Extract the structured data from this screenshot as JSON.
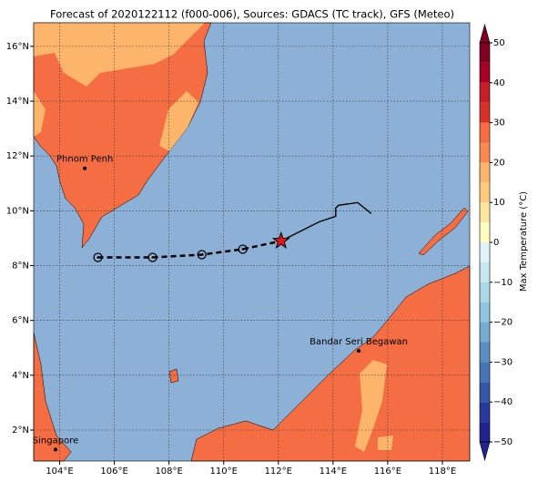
{
  "title": "Forecast of 2020122112 (f000-006), Sources: GDACS (TC track), GFS (Meteo)",
  "map": {
    "lonlim": [
      103.05,
      119.0
    ],
    "latlim": [
      0.87,
      16.86
    ],
    "grid": true,
    "xticks": [
      {
        "value": 104,
        "label": "104°E"
      },
      {
        "value": 106,
        "label": "106°E"
      },
      {
        "value": 108,
        "label": "108°E"
      },
      {
        "value": 110,
        "label": "110°E"
      },
      {
        "value": 112,
        "label": "112°E"
      },
      {
        "value": 114,
        "label": "114°E"
      },
      {
        "value": 116,
        "label": "116°E"
      },
      {
        "value": 118,
        "label": "118°E"
      }
    ],
    "yticks": [
      {
        "value": 2,
        "label": "2°N"
      },
      {
        "value": 4,
        "label": "4°N"
      },
      {
        "value": 6,
        "label": "6°N"
      },
      {
        "value": 8,
        "label": "8°N"
      },
      {
        "value": 10,
        "label": "10°N"
      },
      {
        "value": 12,
        "label": "12°N"
      },
      {
        "value": 14,
        "label": "14°N"
      },
      {
        "value": 16,
        "label": "16°N"
      }
    ],
    "forecast_track": {
      "lon": [
        105.4,
        107.4,
        109.2,
        110.7,
        112.1
      ],
      "lat": [
        8.3,
        8.3,
        8.4,
        8.6,
        8.9
      ]
    },
    "current_position": {
      "lon": 112.1,
      "lat": 8.9
    },
    "past_track": {
      "lon": [
        112.1,
        113.5,
        114.1,
        114.1,
        114.2,
        114.9,
        115.4
      ],
      "lat": [
        8.9,
        9.6,
        9.8,
        10.1,
        10.2,
        10.3,
        9.9
      ]
    },
    "cities": [
      {
        "name": "Phnom Penh",
        "lon": 104.92,
        "lat": 11.55
      },
      {
        "name": "Bandar Seri Begawan",
        "lon": 114.94,
        "lat": 4.89
      },
      {
        "name": "Singapore",
        "lon": 103.85,
        "lat": 1.29
      }
    ]
  },
  "colorbar": {
    "label": "Max Temperature (°C)",
    "lim": [
      -50,
      50
    ],
    "ticks": [
      {
        "value": -50,
        "label": "−50"
      },
      {
        "value": -40,
        "label": "−40"
      },
      {
        "value": -30,
        "label": "−30"
      },
      {
        "value": -20,
        "label": "−20"
      },
      {
        "value": -10,
        "label": "−10"
      },
      0,
      10,
      20,
      30,
      40,
      50
    ],
    "levels": [
      -50,
      -45,
      -40,
      -35,
      -30,
      -25,
      -20,
      -15,
      -10,
      -5,
      0,
      5,
      10,
      15,
      20,
      25,
      30,
      35,
      40,
      45,
      50
    ],
    "colors": [
      "#23238e",
      "#2a3a9a",
      "#3656a8",
      "#4575b4",
      "#5b8ec2",
      "#74add1",
      "#91c4de",
      "#abd9e9",
      "#c6e6f0",
      "#e0f3f8",
      "#fefec0",
      "#fee6a0",
      "#fdcb7b",
      "#fdb56b",
      "#f88950",
      "#f46d43",
      "#d73027",
      "#c41e26",
      "#a50026",
      "#7f0021"
    ]
  }
}
